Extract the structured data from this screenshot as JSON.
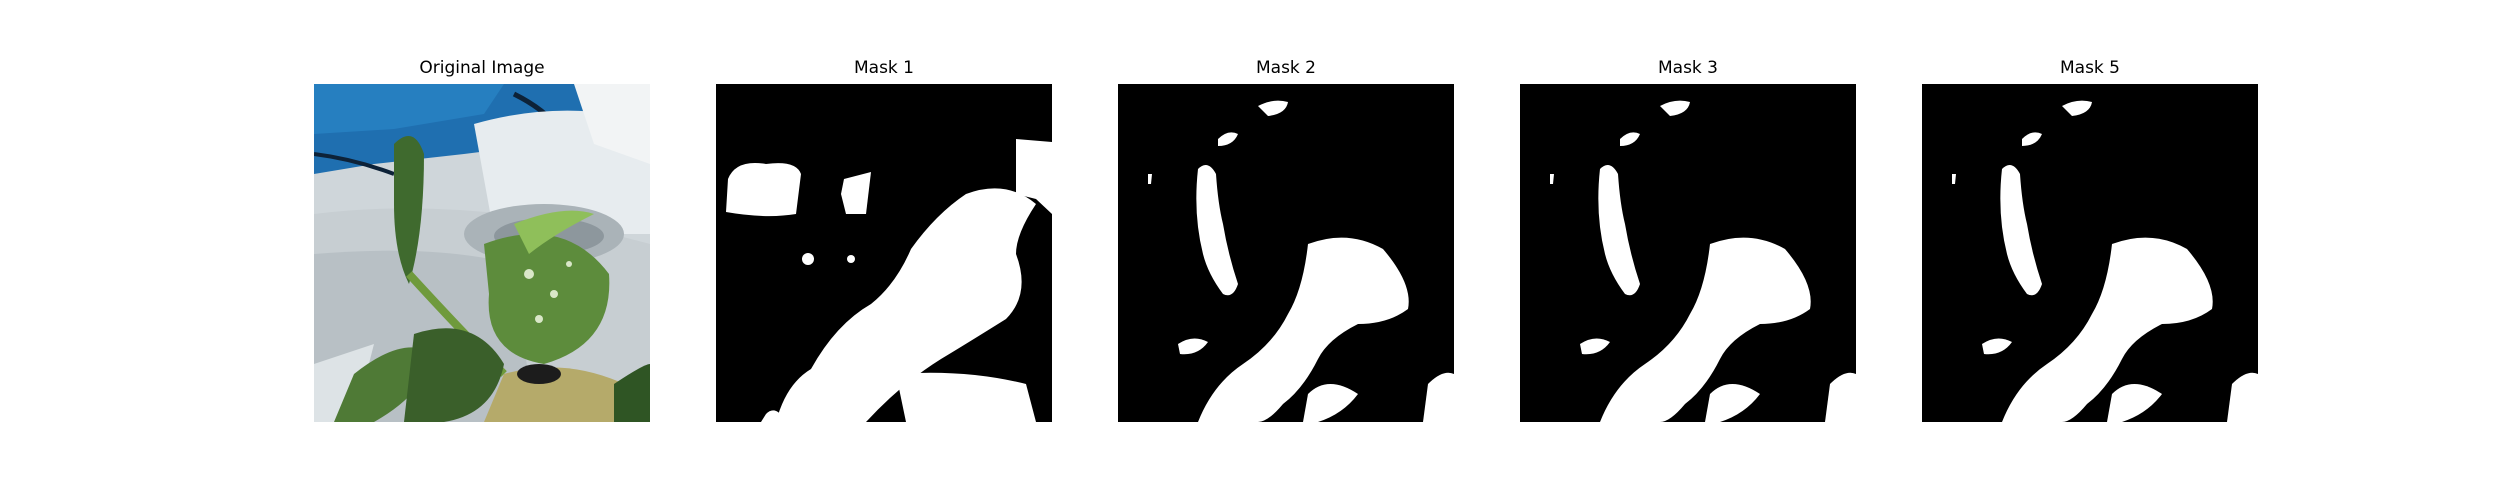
{
  "panels": [
    {
      "title": "Original Image",
      "kind": "photo"
    },
    {
      "title": "Mask 1",
      "kind": "mask"
    },
    {
      "title": "Mask 2",
      "kind": "mask"
    },
    {
      "title": "Mask 3",
      "kind": "mask"
    },
    {
      "title": "Mask 5",
      "kind": "mask"
    }
  ],
  "colors": {
    "mask_background": "#000000",
    "mask_foreground": "#ffffff",
    "photo_sky_blue": "#1f6fb0",
    "photo_planter_gray": "#c9d0d4",
    "photo_leaf_green": "#4f7a36",
    "photo_leaf_light": "#8fbf5a"
  }
}
